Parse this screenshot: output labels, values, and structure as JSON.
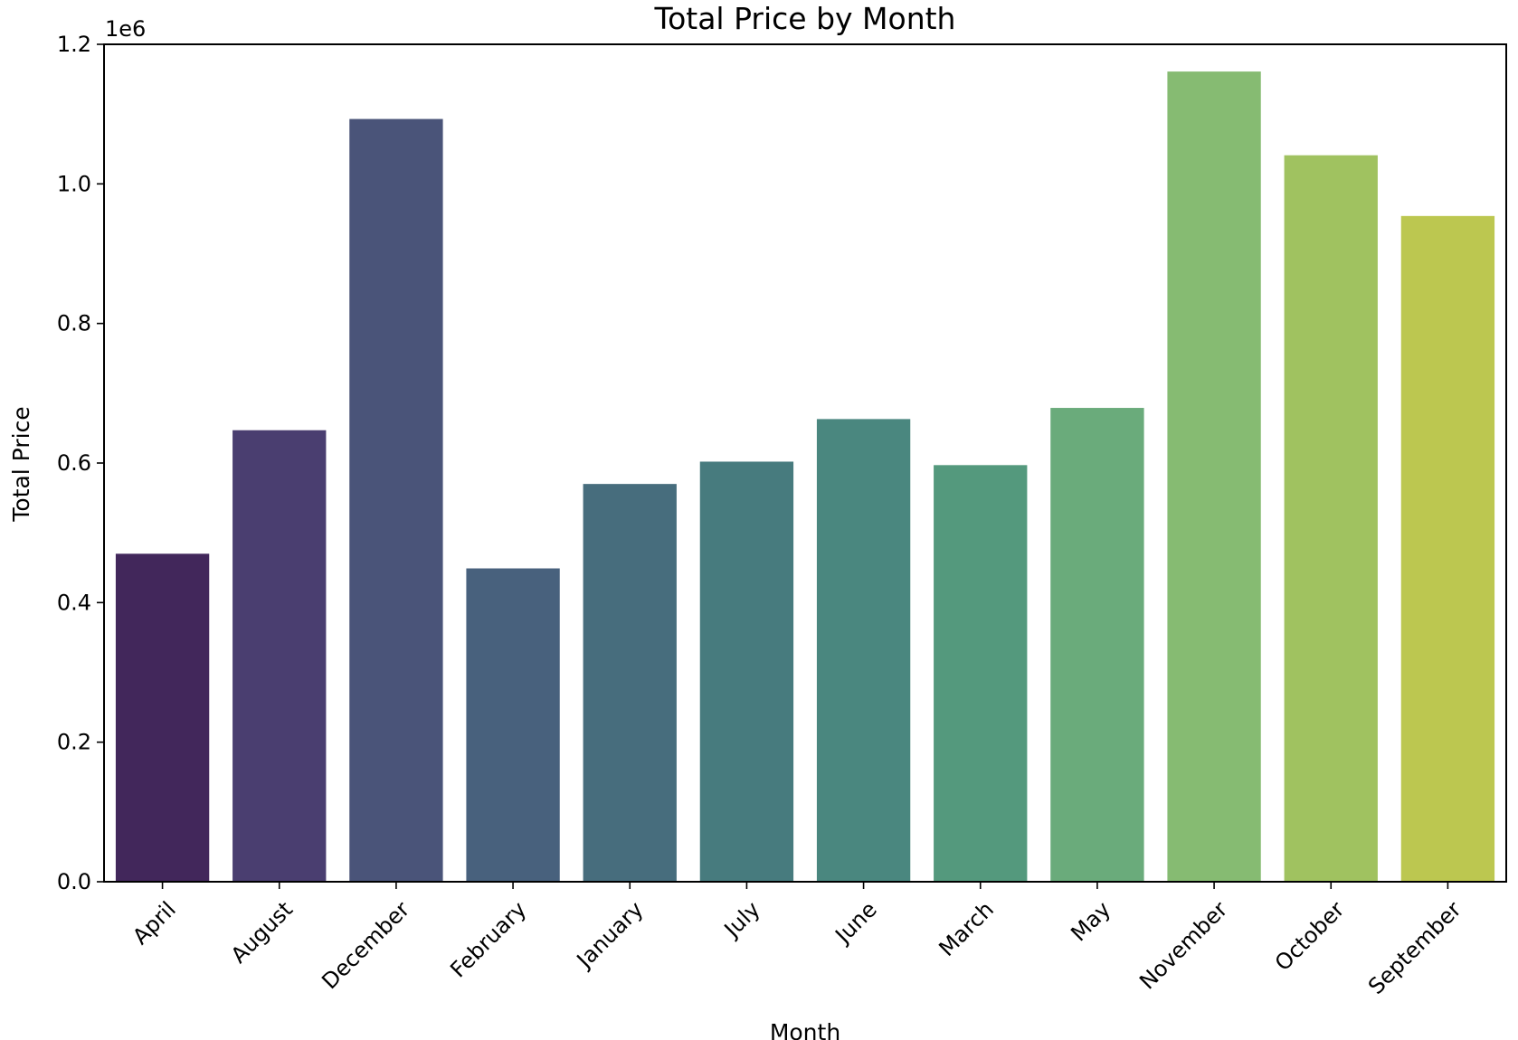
{
  "chart_data": {
    "type": "bar",
    "title": "Total Price by Month",
    "xlabel": "Month",
    "ylabel": "Total Price",
    "y_offset_label": "1e6",
    "categories": [
      "April",
      "August",
      "December",
      "February",
      "January",
      "July",
      "June",
      "March",
      "May",
      "November",
      "October",
      "September"
    ],
    "values": [
      470000,
      647000,
      1093000,
      449000,
      570000,
      602000,
      663000,
      597000,
      679000,
      1161000,
      1041000,
      954000
    ],
    "colors": [
      "#42275b",
      "#4a3e70",
      "#4a5479",
      "#48617d",
      "#476d7d",
      "#477b7e",
      "#4a877f",
      "#54997d",
      "#6aab7b",
      "#86bb72",
      "#a0c260",
      "#bcc750"
    ],
    "ylim": [
      0,
      1200000
    ],
    "yticks": [
      0,
      200000,
      400000,
      600000,
      800000,
      1000000,
      1200000
    ],
    "ytick_labels": [
      "0.0",
      "0.2",
      "0.4",
      "0.6",
      "0.8",
      "1.0",
      "1.2"
    ],
    "grid": false,
    "legend": "none"
  }
}
